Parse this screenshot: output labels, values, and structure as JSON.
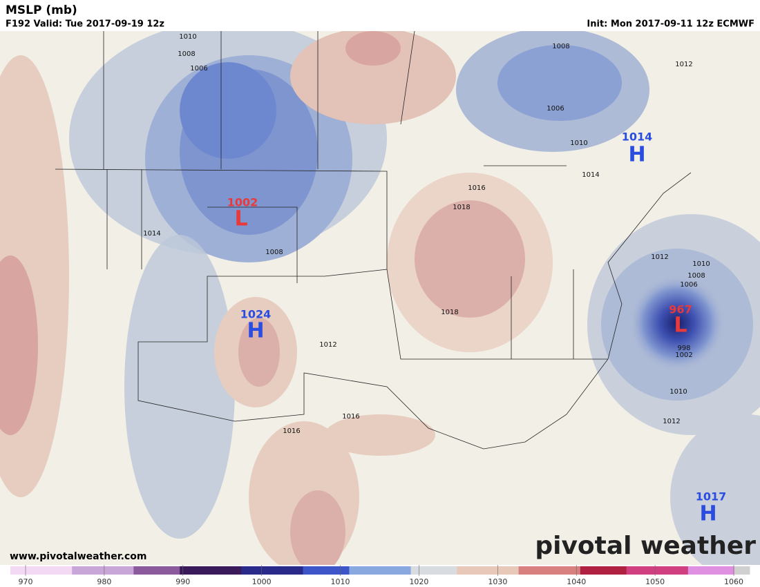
{
  "header": {
    "title": "MSLP (mb)",
    "valid": "F192 Valid: Tue 2017-09-19 12z",
    "init": "Init: Mon 2017-09-11 12z ECMWF"
  },
  "centers": [
    {
      "type": "L",
      "value": 1002
    },
    {
      "type": "H",
      "value": 1024
    },
    {
      "type": "H",
      "value": 1014
    },
    {
      "type": "L",
      "value": 967
    },
    {
      "type": "H",
      "value": 1017
    }
  ],
  "contour_labels": [
    1010,
    1008,
    1006,
    1014,
    1008,
    1012,
    1016,
    1018,
    1018,
    1016,
    1016,
    1008,
    1006,
    1010,
    1014,
    1012,
    1012,
    1010,
    1008,
    1006,
    998,
    1002,
    1010,
    1012
  ],
  "footer": {
    "website": "www.pivotalweather.com",
    "logo": "pivotal weather"
  },
  "colorbar": {
    "ticks": [
      970,
      980,
      990,
      1000,
      1010,
      1020,
      1030,
      1040,
      1050,
      1060
    ]
  }
}
